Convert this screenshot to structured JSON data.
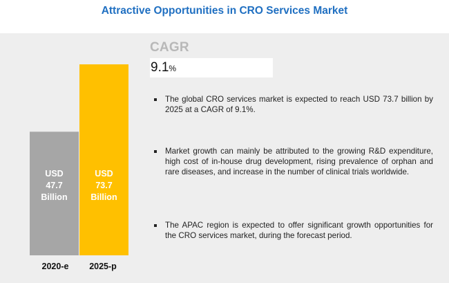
{
  "title": "Attractive Opportunities in CRO Services Market",
  "cagr": {
    "label": "CAGR",
    "value": "9.1",
    "unit": "%"
  },
  "chart_data": {
    "type": "bar",
    "categories": [
      "2020-e",
      "2025-p"
    ],
    "values": [
      47.7,
      73.7
    ],
    "bar_labels": [
      [
        "USD",
        "47.7",
        "Billion"
      ],
      [
        "USD",
        "73.7",
        "Billion"
      ]
    ],
    "colors": [
      "#a6a6a6",
      "#ffc000"
    ],
    "title": "",
    "xlabel": "",
    "ylabel": "",
    "ylim": [
      0,
      73.7
    ]
  },
  "bullets": [
    "The global CRO services market is expected to reach USD 73.7 billion by 2025 at a CAGR of 9.1%.",
    "Market growth can mainly be attributed to the growing R&D expenditure, high cost of in-house drug development, rising prevalence of orphan and rare diseases, and increase in the number of clinical trials worldwide.",
    "The APAC region is expected to offer significant growth opportunities for the CRO services market, during the forecast period."
  ]
}
